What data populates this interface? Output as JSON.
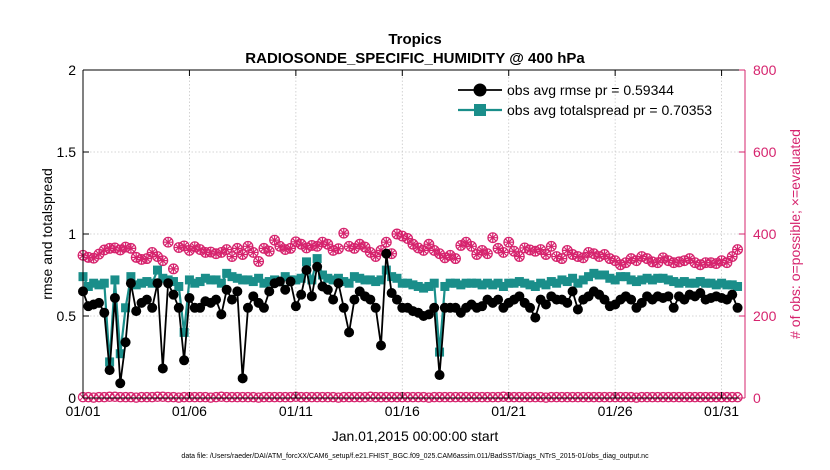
{
  "chart_data": {
    "type": "line",
    "title": "Tropics",
    "subtitle": "RADIOSONDE_SPECIFIC_HUMIDITY @ 400 hPa",
    "xlabel": "Jan.01,2015 00:00:00 start",
    "ylabel": "rmse and totalspread",
    "y2label": "# of obs: o=possible; ×=evaluated",
    "footnote": "data file: /Users/raeder/DAI/ATM_forcXX/CAM6_setup/f.e21.FHIST_BGC.f09_025.CAM6assim.011/BadSST/Diags_NTrS_2015-01/obs_diag_output.nc",
    "xlim": [
      1,
      32.1
    ],
    "ylim": [
      0,
      2
    ],
    "y2lim": [
      0,
      800
    ],
    "x_ticks": [
      1,
      6,
      11,
      16,
      21,
      26,
      31
    ],
    "x_tick_labels": [
      "01/01",
      "01/06",
      "01/11",
      "01/16",
      "01/21",
      "01/26",
      "01/31"
    ],
    "y_ticks": [
      0,
      0.5,
      1,
      1.5,
      2
    ],
    "y_tick_labels": [
      "0",
      "0.5",
      "1",
      "1.5",
      "2"
    ],
    "y2_ticks": [
      0,
      200,
      400,
      600,
      800
    ],
    "y2_tick_labels": [
      "0",
      "200",
      "400",
      "600",
      "800"
    ],
    "x_start": 1.0,
    "x_step": 0.25,
    "legend": {
      "location": "top-right",
      "entries": [
        "obs avg rmse pr = 0.59344",
        "obs avg totalspread pr = 0.70353"
      ]
    },
    "colors": {
      "rmse": "#000000",
      "spread": "#1a8e8a",
      "obs": "#d6246e"
    },
    "series": [
      {
        "name": "obs avg rmse pr = 0.59344",
        "values": [
          0.65,
          0.56,
          0.57,
          0.58,
          0.52,
          0.17,
          0.61,
          0.09,
          0.34,
          0.7,
          0.53,
          0.58,
          0.6,
          0.55,
          0.7,
          0.18,
          0.7,
          0.63,
          0.55,
          0.23,
          0.61,
          0.55,
          0.55,
          0.59,
          0.58,
          0.6,
          0.51,
          0.66,
          0.6,
          0.65,
          0.12,
          0.55,
          0.62,
          0.58,
          0.55,
          0.65,
          0.7,
          0.71,
          0.66,
          0.71,
          0.56,
          0.63,
          0.78,
          0.62,
          0.8,
          0.68,
          0.66,
          0.6,
          0.7,
          0.55,
          0.4,
          0.6,
          0.65,
          0.62,
          0.6,
          0.55,
          0.32,
          0.88,
          0.64,
          0.6,
          0.55,
          0.55,
          0.53,
          0.52,
          0.5,
          0.51,
          0.55,
          0.14,
          0.55,
          0.55,
          0.55,
          0.52,
          0.55,
          0.57,
          0.55,
          0.56,
          0.6,
          0.58,
          0.6,
          0.55,
          0.58,
          0.6,
          0.62,
          0.58,
          0.55,
          0.49,
          0.6,
          0.57,
          0.62,
          0.6,
          0.6,
          0.58,
          0.65,
          0.54,
          0.6,
          0.62,
          0.65,
          0.63,
          0.6,
          0.56,
          0.57,
          0.6,
          0.62,
          0.6,
          0.55,
          0.58,
          0.62,
          0.6,
          0.62,
          0.61,
          0.62,
          0.55,
          0.62,
          0.6,
          0.63,
          0.62,
          0.64,
          0.6,
          0.61,
          0.62,
          0.61,
          0.6,
          0.63,
          0.55
        ]
      },
      {
        "name": "obs avg totalspread pr = 0.70353",
        "values": [
          0.74,
          0.68,
          0.7,
          0.69,
          0.7,
          0.22,
          0.72,
          0.27,
          0.55,
          0.74,
          0.69,
          0.7,
          0.71,
          0.7,
          0.78,
          0.73,
          0.72,
          0.71,
          0.68,
          0.4,
          0.72,
          0.7,
          0.71,
          0.73,
          0.72,
          0.72,
          0.7,
          0.76,
          0.74,
          0.73,
          0.72,
          0.72,
          0.71,
          0.73,
          0.7,
          0.71,
          0.72,
          0.71,
          0.74,
          0.72,
          0.72,
          0.73,
          0.83,
          0.72,
          0.85,
          0.75,
          0.73,
          0.72,
          0.73,
          0.71,
          0.7,
          0.74,
          0.73,
          0.72,
          0.72,
          0.71,
          0.72,
          0.78,
          0.74,
          0.73,
          0.7,
          0.7,
          0.69,
          0.68,
          0.67,
          0.68,
          0.7,
          0.28,
          0.68,
          0.7,
          0.7,
          0.69,
          0.7,
          0.7,
          0.7,
          0.69,
          0.7,
          0.69,
          0.7,
          0.68,
          0.7,
          0.7,
          0.71,
          0.7,
          0.69,
          0.68,
          0.7,
          0.69,
          0.71,
          0.7,
          0.72,
          0.71,
          0.73,
          0.7,
          0.72,
          0.74,
          0.76,
          0.75,
          0.75,
          0.73,
          0.72,
          0.74,
          0.74,
          0.72,
          0.71,
          0.72,
          0.73,
          0.72,
          0.73,
          0.73,
          0.72,
          0.71,
          0.7,
          0.71,
          0.7,
          0.7,
          0.71,
          0.7,
          0.7,
          0.69,
          0.7,
          0.69,
          0.69,
          0.68
        ]
      },
      {
        "name": "obs possible",
        "axis": "right",
        "values": [
          348,
          343,
          341,
          351,
          361,
          365,
          366,
          361,
          368,
          365,
          343,
          338,
          340,
          355,
          345,
          335,
          380,
          315,
          367,
          371,
          360,
          369,
          362,
          355,
          356,
          352,
          355,
          362,
          345,
          365,
          350,
          370,
          355,
          333,
          365,
          358,
          385,
          370,
          362,
          365,
          381,
          375,
          366,
          372,
          370,
          380,
          375,
          360,
          364,
          402,
          370,
          365,
          375,
          368,
          355,
          345,
          360,
          380,
          352,
          400,
          395,
          389,
          375,
          366,
          360,
          375,
          360,
          352,
          342,
          348,
          340,
          372,
          380,
          370,
          350,
          360,
          352,
          391,
          365,
          355,
          380,
          358,
          345,
          366,
          361,
          358,
          362,
          350,
          370,
          345,
          340,
          360,
          350,
          345,
          342,
          355,
          352,
          345,
          350,
          340,
          335,
          325,
          330,
          340,
          335,
          345,
          340,
          332,
          330,
          342,
          335,
          330,
          332,
          335,
          340,
          330,
          325,
          330,
          330,
          328,
          335,
          330,
          345,
          362
        ]
      },
      {
        "name": "obs evaluated",
        "axis": "right",
        "values": [
          348,
          343,
          341,
          351,
          361,
          365,
          366,
          361,
          368,
          365,
          343,
          338,
          340,
          355,
          345,
          335,
          380,
          315,
          367,
          371,
          360,
          369,
          362,
          355,
          356,
          352,
          355,
          362,
          345,
          365,
          350,
          370,
          355,
          333,
          365,
          358,
          385,
          370,
          362,
          365,
          381,
          375,
          366,
          372,
          370,
          380,
          375,
          360,
          364,
          402,
          370,
          365,
          375,
          368,
          355,
          345,
          360,
          380,
          352,
          400,
          395,
          389,
          375,
          366,
          360,
          375,
          360,
          352,
          342,
          348,
          340,
          372,
          380,
          370,
          350,
          360,
          352,
          391,
          365,
          355,
          380,
          358,
          345,
          366,
          361,
          358,
          362,
          350,
          370,
          345,
          340,
          360,
          350,
          345,
          342,
          355,
          352,
          345,
          350,
          340,
          335,
          325,
          330,
          340,
          335,
          345,
          340,
          332,
          330,
          342,
          335,
          330,
          332,
          335,
          340,
          330,
          325,
          330,
          330,
          328,
          335,
          330,
          345,
          362
        ]
      },
      {
        "name": "obs near zero",
        "axis": "right",
        "values": [
          2,
          2,
          1,
          2,
          2,
          3,
          3,
          2,
          2,
          2,
          1,
          2,
          2,
          2,
          3,
          3,
          2,
          2,
          1,
          2,
          2,
          2,
          2,
          2,
          1,
          2,
          3,
          2,
          2,
          2,
          2,
          2,
          2,
          1,
          2,
          2,
          2,
          2,
          2,
          2,
          3,
          2,
          2,
          2,
          2,
          2,
          2,
          2,
          1,
          2,
          2,
          2,
          2,
          2,
          3,
          2,
          2,
          2,
          2,
          2,
          2,
          2,
          2,
          2,
          2,
          1,
          2,
          2,
          2,
          2,
          2,
          2,
          2,
          2,
          2,
          2,
          2,
          2,
          2,
          3,
          2,
          2,
          2,
          2,
          2,
          2,
          2,
          1,
          2,
          2,
          2,
          2,
          2,
          2,
          2,
          2,
          2,
          2,
          2,
          2,
          2,
          2,
          2,
          2,
          1,
          2,
          2,
          2,
          2,
          2,
          2,
          2,
          2,
          2,
          2,
          2,
          2,
          2,
          2,
          2,
          2,
          2,
          2,
          2
        ]
      }
    ]
  }
}
